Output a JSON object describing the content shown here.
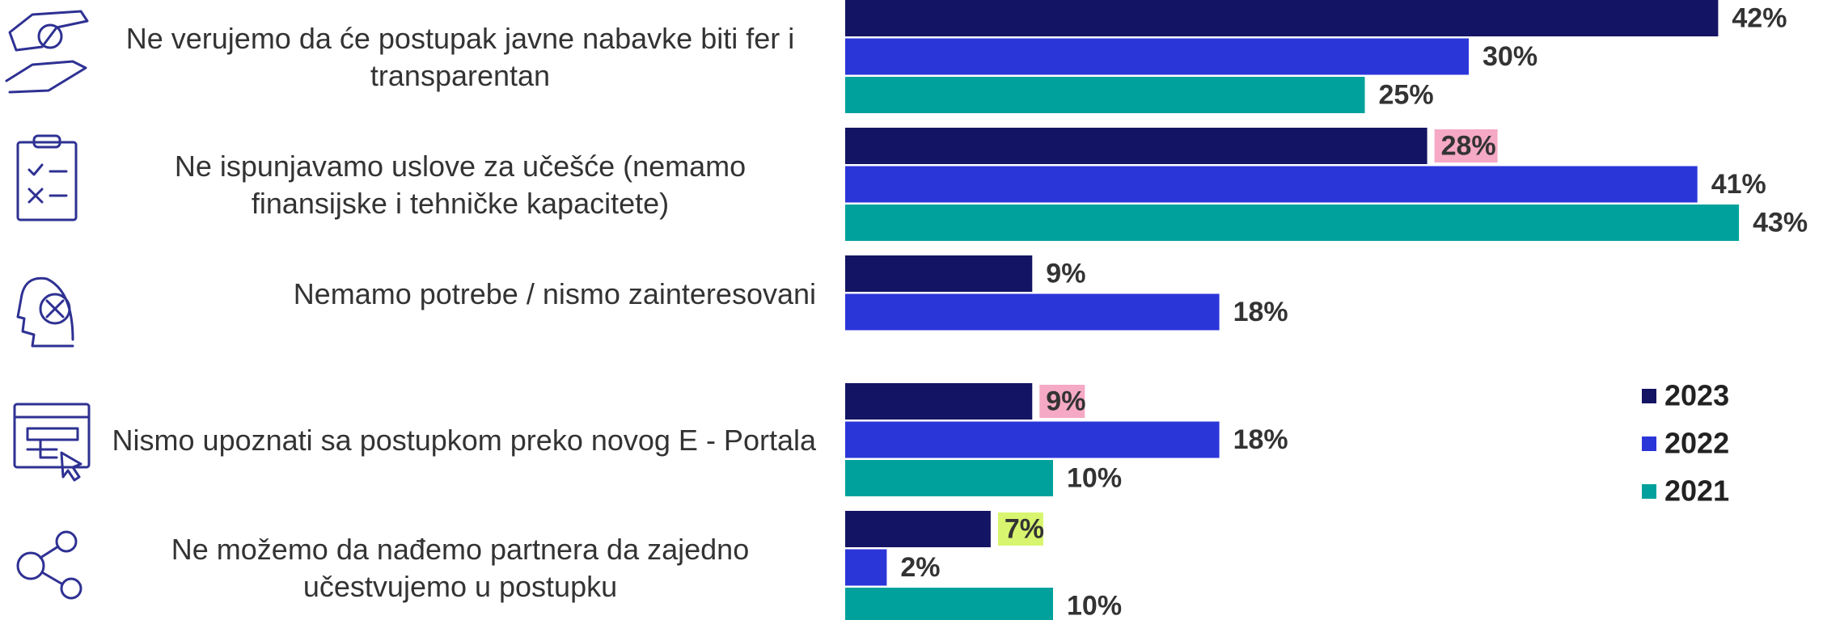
{
  "chart_data": {
    "type": "bar",
    "orientation": "horizontal",
    "categories": [
      "Ne verujemo da će postupak javne nabavke biti fer i transparentan",
      "Ne ispunjavamo uslove za učešće (nemamo finansijske i tehničke kapacitete)",
      "Nemamo potrebe / nismo zainteresovani",
      "Nismo upoznati sa postupkom preko novog E - Portala",
      "Ne možemo da nađemo partnera da zajedno učestvujemo u postupku"
    ],
    "series": [
      {
        "name": "2023",
        "color": "#141464",
        "values": [
          42,
          28,
          9,
          9,
          7
        ],
        "value_labels": [
          "42%",
          "28%",
          "9%",
          "9%",
          "7%"
        ],
        "label_backgrounds": [
          null,
          "#f5a9c4",
          null,
          "#f5a9c4",
          "#d8f56f"
        ]
      },
      {
        "name": "2022",
        "color": "#2b36d9",
        "values": [
          30,
          41,
          18,
          18,
          2
        ],
        "value_labels": [
          "30%",
          "41%",
          "18%",
          "18%",
          "2%"
        ]
      },
      {
        "name": "2021",
        "color": "#00a19c",
        "values": [
          25,
          43,
          null,
          10,
          10
        ],
        "value_labels": [
          "25%",
          "43%",
          null,
          "10%",
          "10%"
        ]
      }
    ],
    "legend": "right"
  }
}
